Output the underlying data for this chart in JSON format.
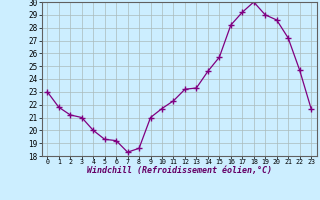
{
  "x": [
    0,
    1,
    2,
    3,
    4,
    5,
    6,
    7,
    8,
    9,
    10,
    11,
    12,
    13,
    14,
    15,
    16,
    17,
    18,
    19,
    20,
    21,
    22,
    23
  ],
  "y": [
    23.0,
    21.8,
    21.2,
    21.0,
    20.0,
    19.3,
    19.2,
    18.3,
    18.6,
    21.0,
    21.7,
    22.3,
    23.2,
    23.3,
    24.6,
    25.7,
    28.2,
    29.2,
    30.0,
    29.0,
    28.6,
    27.2,
    24.7,
    21.7
  ],
  "line_color": "#800080",
  "marker": "+",
  "marker_size": 4,
  "bg_color": "#cceeff",
  "grid_color": "#aabbbb",
  "xlabel": "Windchill (Refroidissement éolien,°C)",
  "ylim": [
    18,
    30
  ],
  "xlim": [
    -0.5,
    23.5
  ],
  "yticks": [
    18,
    19,
    20,
    21,
    22,
    23,
    24,
    25,
    26,
    27,
    28,
    29,
    30
  ],
  "xtick_labels": [
    "0",
    "1",
    "2",
    "3",
    "4",
    "5",
    "6",
    "7",
    "8",
    "9",
    "10",
    "11",
    "12",
    "13",
    "14",
    "15",
    "16",
    "17",
    "18",
    "19",
    "20",
    "21",
    "22",
    "23"
  ]
}
